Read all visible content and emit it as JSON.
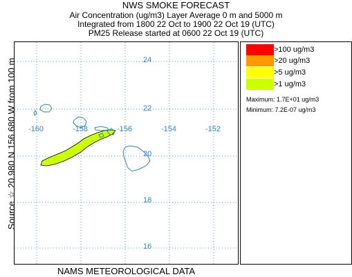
{
  "header": {
    "title": "NWS SMOKE FORECAST",
    "line1": "Air Concentration (ug/m3) Layer Average    0 m and  5000 m",
    "line2": "Integrated from 1800 22 Oct to 1900 22 Oct 19 (UTC)",
    "line3": "PM25 Release started at 0600 22 Oct 19 (UTC)"
  },
  "side_label": "Source ☆  20.980 N 156.680  W    from   100 m",
  "footer": "NAMS METEOROLOGICAL DATA",
  "map": {
    "lat_labels": [
      "24",
      "22",
      "20",
      "18",
      "16"
    ],
    "lon_labels": [
      "-160",
      "-158",
      "-156",
      "-154",
      "-152"
    ],
    "grid_color": "#4a9fd8",
    "coast_color": "#2b86c6"
  },
  "legend": {
    "items": [
      {
        "label": ">100 ug/m3",
        "color": "#ff0000"
      },
      {
        "label": ">20 ug/m3",
        "color": "#ff9900"
      },
      {
        "label": ">5 ug/m3",
        "color": "#ffff00"
      },
      {
        "label": ">1 ug/m3",
        "color": "#ccff00"
      }
    ],
    "maximum": "Maximum: 1.7E+01 ug/m3",
    "minimum": "Minimum: 7.2E-07 ug/m3"
  }
}
